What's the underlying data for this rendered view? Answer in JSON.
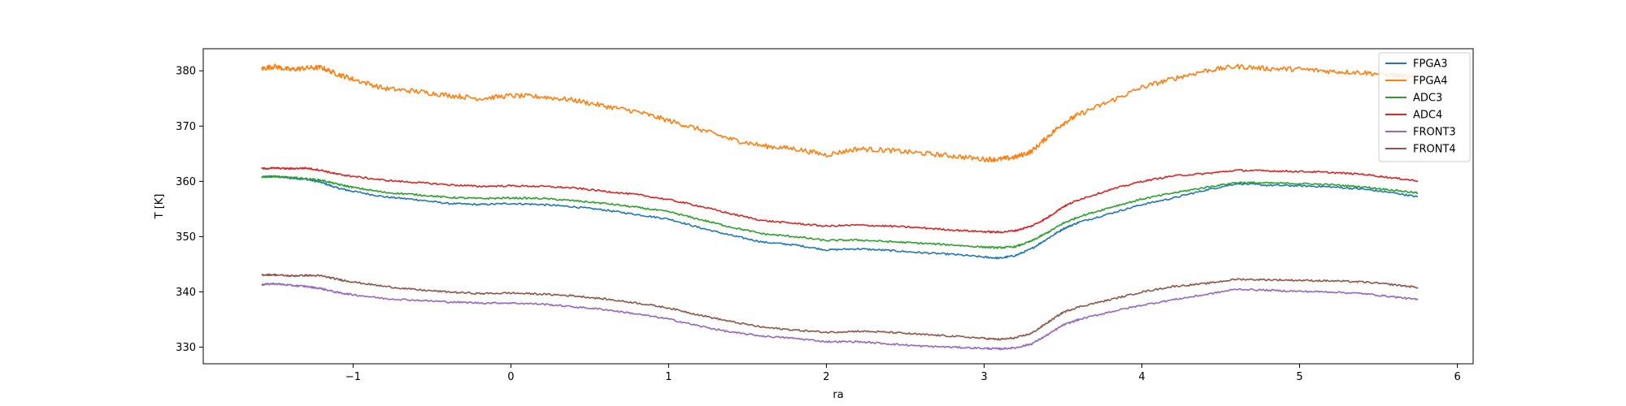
{
  "chart_data": {
    "type": "line",
    "xlabel": "ra",
    "ylabel": "T [K]",
    "xlim": [
      -1.95,
      6.1
    ],
    "ylim": [
      327,
      384
    ],
    "xticks": [
      -1,
      0,
      1,
      2,
      3,
      4,
      5,
      6
    ],
    "yticks": [
      330,
      340,
      350,
      360,
      370,
      380
    ],
    "grid": false,
    "legend": "top-right",
    "x": [
      -1.58,
      -1.5,
      -1.4,
      -1.3,
      -1.2,
      -1.1,
      -1.0,
      -0.8,
      -0.6,
      -0.4,
      -0.2,
      0.0,
      0.2,
      0.4,
      0.6,
      0.8,
      1.0,
      1.2,
      1.4,
      1.6,
      1.8,
      2.0,
      2.2,
      2.4,
      2.6,
      2.8,
      3.0,
      3.1,
      3.2,
      3.3,
      3.4,
      3.5,
      3.6,
      3.8,
      4.0,
      4.2,
      4.4,
      4.6,
      4.8,
      5.0,
      5.2,
      5.4,
      5.6,
      5.75
    ],
    "series": [
      {
        "name": "FPGA3",
        "color": "#1f77b4",
        "values": [
          360.8,
          360.9,
          360.6,
          360.4,
          359.8,
          358.8,
          358.2,
          357.2,
          356.7,
          356.0,
          355.8,
          356.0,
          355.8,
          355.4,
          354.8,
          354.0,
          353.2,
          351.6,
          350.2,
          349.0,
          348.5,
          347.6,
          347.8,
          347.5,
          347.1,
          346.8,
          346.3,
          346.1,
          346.6,
          347.8,
          349.6,
          351.4,
          352.6,
          354.2,
          355.8,
          357.0,
          358.4,
          359.6,
          359.3,
          359.2,
          359.0,
          358.6,
          357.9,
          357.2
        ]
      },
      {
        "name": "FPGA4",
        "color": "#ff7f0e",
        "values": [
          380.4,
          380.8,
          380.2,
          380.5,
          380.6,
          379.4,
          378.5,
          376.8,
          376.3,
          375.6,
          375.0,
          375.5,
          375.3,
          374.7,
          373.6,
          372.6,
          371.0,
          369.4,
          367.6,
          366.4,
          365.9,
          364.8,
          365.9,
          365.6,
          365.1,
          364.6,
          364.0,
          364.0,
          364.4,
          365.4,
          368.0,
          370.5,
          372.1,
          374.5,
          377.0,
          378.6,
          380.0,
          380.8,
          380.4,
          380.3,
          379.9,
          379.7,
          379.2,
          378.7
        ]
      },
      {
        "name": "ADC3",
        "color": "#2ca02c",
        "values": [
          360.8,
          360.9,
          360.7,
          360.5,
          360.2,
          359.5,
          358.9,
          358.0,
          357.6,
          357.1,
          356.9,
          357.0,
          356.9,
          356.5,
          356.0,
          355.3,
          354.5,
          353.1,
          351.7,
          350.5,
          350.0,
          349.3,
          349.4,
          349.1,
          348.8,
          348.5,
          348.1,
          348.0,
          348.2,
          349.2,
          350.7,
          352.4,
          353.6,
          355.3,
          356.8,
          357.9,
          358.9,
          359.8,
          359.7,
          359.6,
          359.4,
          359.0,
          358.4,
          357.9
        ]
      },
      {
        "name": "ADC4",
        "color": "#d62728",
        "values": [
          362.3,
          362.4,
          362.3,
          362.4,
          362.0,
          361.3,
          360.9,
          360.2,
          359.8,
          359.4,
          359.1,
          359.2,
          359.1,
          358.8,
          358.2,
          357.6,
          356.7,
          355.5,
          354.1,
          352.9,
          352.4,
          351.9,
          352.1,
          351.9,
          351.6,
          351.2,
          350.9,
          350.8,
          351.1,
          351.9,
          353.4,
          355.4,
          356.7,
          358.5,
          360.0,
          361.0,
          361.4,
          362.0,
          361.9,
          361.8,
          361.6,
          361.3,
          360.6,
          360.1
        ]
      },
      {
        "name": "FRONT3",
        "color": "#9467bd",
        "values": [
          341.3,
          341.5,
          341.2,
          341.0,
          340.6,
          339.9,
          339.5,
          338.8,
          338.5,
          338.2,
          338.0,
          338.0,
          337.8,
          337.3,
          336.8,
          336.0,
          335.1,
          333.8,
          332.7,
          332.0,
          331.6,
          331.0,
          331.0,
          330.6,
          330.2,
          330.0,
          329.8,
          329.7,
          329.9,
          330.6,
          332.2,
          334.0,
          335.0,
          336.4,
          337.6,
          338.6,
          339.5,
          340.5,
          340.3,
          340.1,
          340.0,
          339.7,
          339.1,
          338.6
        ]
      },
      {
        "name": "FRONT4",
        "color": "#8c564b",
        "values": [
          343.1,
          343.1,
          342.9,
          343.0,
          342.9,
          342.3,
          341.8,
          341.0,
          340.4,
          340.0,
          339.7,
          339.8,
          339.6,
          339.3,
          338.7,
          338.0,
          337.1,
          335.8,
          334.6,
          333.6,
          333.1,
          332.7,
          332.9,
          332.7,
          332.3,
          332.0,
          331.6,
          331.4,
          331.7,
          332.5,
          334.4,
          336.3,
          337.3,
          338.6,
          340.0,
          341.0,
          341.5,
          342.3,
          342.2,
          342.1,
          342.0,
          341.8,
          341.3,
          340.8
        ]
      }
    ]
  }
}
